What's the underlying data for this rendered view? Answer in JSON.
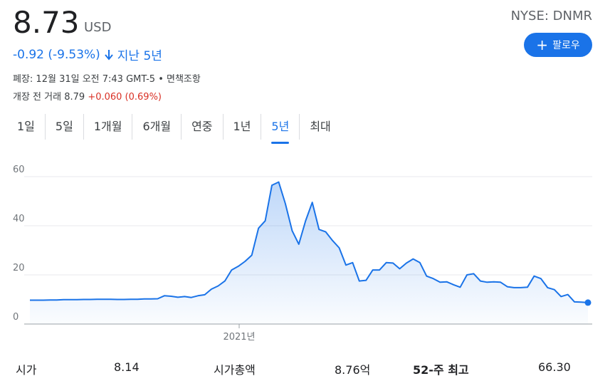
{
  "quote": {
    "price": "8.73",
    "currency": "USD",
    "ticker": "NYSE: DNMR",
    "change": "-0.92 (-9.53%)",
    "period": "지난 5년",
    "disclaimer": "폐장: 12월 31일 오전 7:43 GMT-5 • 면책조항",
    "premarket_label": "개장 전 거래",
    "premarket_price": "8.79",
    "premarket_change": "+0.060 (0.69%)"
  },
  "follow_label": "팔로우",
  "tabs": [
    "1일",
    "5일",
    "1개월",
    "6개월",
    "연중",
    "1년",
    "5년",
    "최대"
  ],
  "active_tab": "5년",
  "stats": [
    {
      "label": "시가",
      "value": "8.14"
    },
    {
      "label": "시가총액",
      "value": "8.76억"
    },
    {
      "label": "52-주 최고",
      "value": "66.30"
    }
  ],
  "colors": {
    "accent": "#1a73e8",
    "negative": "#1a73e8",
    "positive": "#d93025"
  },
  "chart_data": {
    "type": "area",
    "ylim": [
      0,
      60
    ],
    "yticks": [
      0,
      20,
      40,
      60
    ],
    "xtick_labels": [
      "2021년"
    ],
    "grid": true,
    "values": [
      9.7,
      9.7,
      9.7,
      9.8,
      9.8,
      9.9,
      9.9,
      9.9,
      10.0,
      10.0,
      10.1,
      10.1,
      10.1,
      10.0,
      10.0,
      10.1,
      10.1,
      10.2,
      10.2,
      10.3,
      11.5,
      11.3,
      10.9,
      11.2,
      10.8,
      11.5,
      11.9,
      14.2,
      15.5,
      17.5,
      22.0,
      23.5,
      25.5,
      28.0,
      39.0,
      42.0,
      56.5,
      57.8,
      49.0,
      38.0,
      32.5,
      42.0,
      49.5,
      38.5,
      37.5,
      34.0,
      31.0,
      24.0,
      25.0,
      17.5,
      17.8,
      22.0,
      22.0,
      25.0,
      24.8,
      22.5,
      24.8,
      26.5,
      25.0,
      19.5,
      18.5,
      17.0,
      17.2,
      16.0,
      15.0,
      20.0,
      20.5,
      17.5,
      17.0,
      17.2,
      17.0,
      15.2,
      14.8,
      14.8,
      15.0,
      19.5,
      18.5,
      14.8,
      14.0,
      11.2,
      12.0,
      9.0,
      8.9,
      8.73
    ]
  }
}
